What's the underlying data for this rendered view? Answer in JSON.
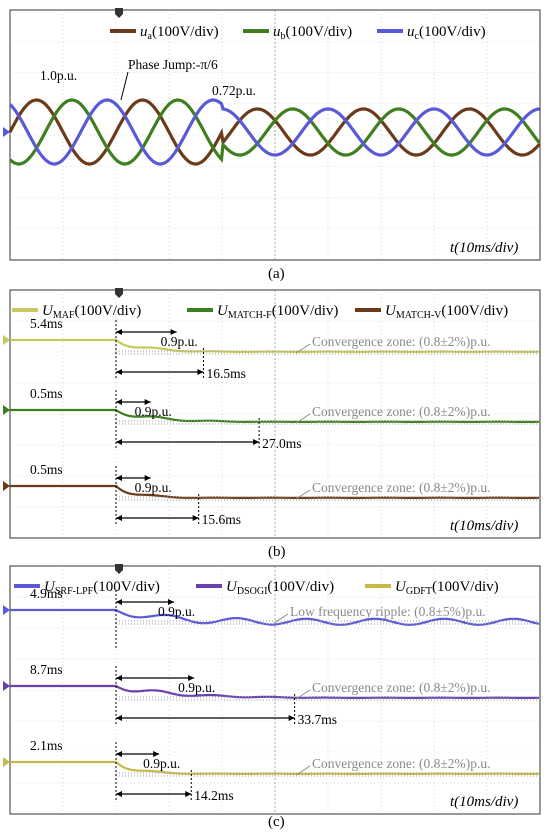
{
  "chart_data": [
    {
      "panel": "(a)",
      "type": "line",
      "xlabel": "t(10ms/div)",
      "legend": [
        {
          "symbol": "u",
          "sub": "a",
          "scale": "(100V/div)",
          "color": "#6b3a1a"
        },
        {
          "symbol": "u",
          "sub": "b",
          "scale": "(100V/div)",
          "color": "#3f7f1f"
        },
        {
          "symbol": "u",
          "sub": "c",
          "scale": "(100V/div)",
          "color": "#5a5ad8"
        }
      ],
      "annotations": {
        "pre_amplitude": "1.0p.u.",
        "event": "Phase Jump:-π/6",
        "post_amplitude": "0.72p.u."
      },
      "series": [
        {
          "name": "ua",
          "amplitude_pu": [
            1.0,
            0.72
          ],
          "phase_deg": 0
        },
        {
          "name": "ub",
          "amplitude_pu": [
            1.0,
            0.72
          ],
          "phase_deg": -120
        },
        {
          "name": "uc",
          "amplitude_pu": [
            1.0,
            0.72
          ],
          "phase_deg": 120
        }
      ],
      "frequency_hz": 50,
      "phase_jump_rad": -0.5236,
      "event_time_ms": 20
    },
    {
      "panel": "(b)",
      "type": "line",
      "xlabel": "t(10ms/div)",
      "legend": [
        {
          "symbol": "U",
          "sub": "MAF",
          "scale": "(100V/div)",
          "color": "#c8c860"
        },
        {
          "symbol": "U",
          "sub": "MATCH-F",
          "scale": "(100V/div)",
          "color": "#3f7f1f"
        },
        {
          "symbol": "U",
          "sub": "MATCH-V",
          "scale": "(100V/div)",
          "color": "#6b3a1a"
        }
      ],
      "traces": [
        {
          "name": "UMAF",
          "delay": "5.4ms",
          "level_label": "0.9p.u.",
          "settle": "16.5ms",
          "zone": "Convergence zone: (0.8±2%)p.u.",
          "color": "#c8c860",
          "delay_ms": 5.4,
          "settle_ms": 16.5
        },
        {
          "name": "UMATCH-F",
          "delay": "0.5ms",
          "level_label": "0.9p.u.",
          "settle": "27.0ms",
          "zone": "Convergence zone: (0.8±2%)p.u.",
          "color": "#3f7f1f",
          "delay_ms": 0.5,
          "settle_ms": 27.0
        },
        {
          "name": "UMATCH-V",
          "delay": "0.5ms",
          "level_label": "0.9p.u.",
          "settle": "15.6ms",
          "zone": "Convergence zone: (0.8±2%)p.u.",
          "color": "#6b3a1a",
          "delay_ms": 0.5,
          "settle_ms": 15.6
        }
      ]
    },
    {
      "panel": "(c)",
      "type": "line",
      "xlabel": "t(10ms/div)",
      "legend": [
        {
          "symbol": "U",
          "sub": "SRF-LPF",
          "scale": "(100V/div)",
          "color": "#5a5ad8"
        },
        {
          "symbol": "U",
          "sub": "DSOGI",
          "scale": "(100V/div)",
          "color": "#6a3fb0"
        },
        {
          "symbol": "U",
          "sub": "GDFT",
          "scale": "(100V/div)",
          "color": "#c8b84a"
        }
      ],
      "traces": [
        {
          "name": "USRF-LPF",
          "delay": "4.9ms",
          "level_label": "0.9p.u.",
          "settle": "",
          "zone": "Low frequency ripple: (0.8±5%)p.u.",
          "color": "#5a5ad8",
          "delay_ms": 4.9,
          "settle_ms": 0
        },
        {
          "name": "UDSOGI",
          "delay": "8.7ms",
          "level_label": "0.9p.u.",
          "settle": "33.7ms",
          "zone": "Convergence zone: (0.8±2%)p.u.",
          "color": "#6a3fb0",
          "delay_ms": 8.7,
          "settle_ms": 33.7
        },
        {
          "name": "UGDFT",
          "delay": "2.1ms",
          "level_label": "0.9p.u.",
          "settle": "14.2ms",
          "zone": "Convergence zone: (0.8±2%)p.u.",
          "color": "#c8b84a",
          "delay_ms": 2.1,
          "settle_ms": 14.2
        }
      ]
    }
  ]
}
